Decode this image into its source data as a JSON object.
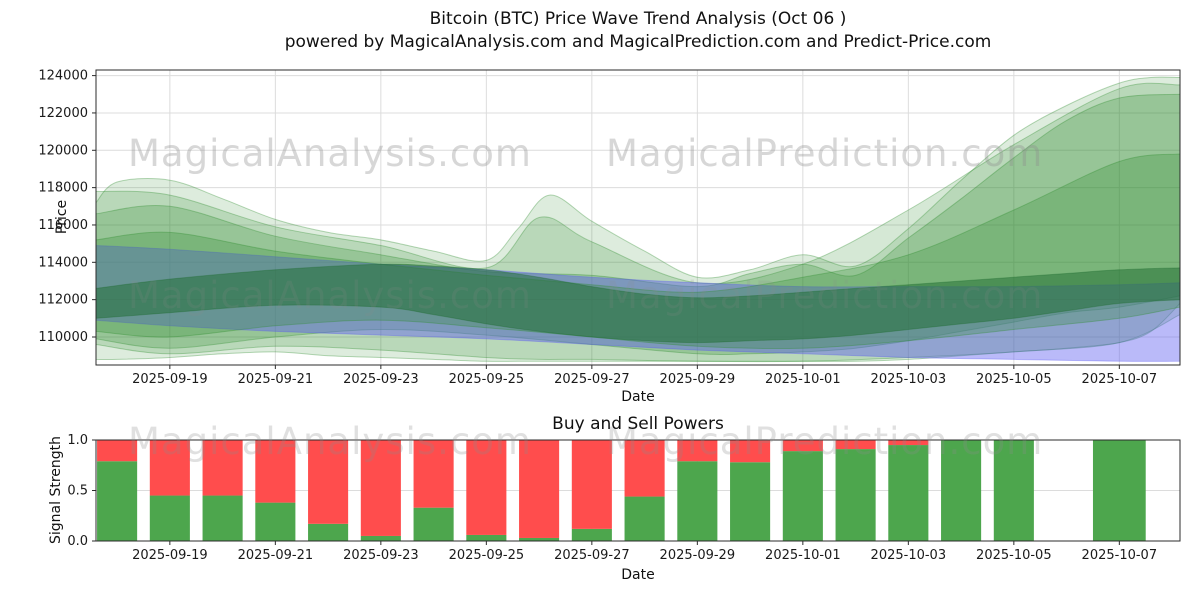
{
  "header": {
    "line1": "Bitcoin (BTC) Price Wave Trend Analysis (Oct 06 )",
    "line2": "powered by MagicalAnalysis.com and MagicalPrediction.com and Predict-Price.com"
  },
  "watermarks": {
    "analysis": "MagicalAnalysis.com",
    "prediction": "MagicalPrediction.com"
  },
  "colors": {
    "band_green": "#2e8b2e",
    "band_green_dark": "#1d6b2f",
    "band_blue": "#5a5af0",
    "buy_green": "#4da64d",
    "sell_red": "#ff4d4d",
    "grid": "#dcdcdc",
    "spine": "#2b2b2b"
  },
  "chart_data": [
    {
      "type": "area",
      "name": "price-wave-trend",
      "ylabel": "Price",
      "xlabel": "Date",
      "ylim": [
        108500,
        124300
      ],
      "yticks": [
        110000,
        112000,
        114000,
        116000,
        118000,
        120000,
        122000,
        124000
      ],
      "x_domain_days": [
        0.6,
        21.15
      ],
      "day0_date": "2025-09-17",
      "grid": true,
      "xticks": [
        {
          "day": 2,
          "label": "2025-09-19"
        },
        {
          "day": 4,
          "label": "2025-09-21"
        },
        {
          "day": 6,
          "label": "2025-09-23"
        },
        {
          "day": 8,
          "label": "2025-09-25"
        },
        {
          "day": 10,
          "label": "2025-09-27"
        },
        {
          "day": 12,
          "label": "2025-09-29"
        },
        {
          "day": 14,
          "label": "2025-10-01"
        },
        {
          "day": 16,
          "label": "2025-10-03"
        },
        {
          "day": 18,
          "label": "2025-10-05"
        },
        {
          "day": 20,
          "label": "2025-10-07"
        }
      ],
      "bands": [
        {
          "name": "green-outer-light",
          "color": "#2e8b2e",
          "opacity": 0.16,
          "x": [
            0.6,
            1,
            2,
            3,
            4,
            5,
            6,
            7,
            8,
            8.6,
            9.2,
            10,
            11,
            12,
            13,
            14,
            15,
            16,
            17,
            18,
            19,
            20,
            20.6,
            21.15
          ],
          "upper": [
            117200,
            118300,
            118400,
            117400,
            116300,
            115600,
            115200,
            114600,
            114100,
            115800,
            117600,
            116200,
            114600,
            113200,
            113600,
            114400,
            113800,
            115800,
            118400,
            120800,
            122400,
            123600,
            123900,
            123900
          ],
          "lower": [
            108800,
            108800,
            108900,
            109100,
            109200,
            109000,
            108900,
            108800,
            108700,
            108700,
            108700,
            108700,
            108700,
            108700,
            108700,
            108700,
            108700,
            108800,
            109000,
            109200,
            109400,
            109700,
            110300,
            111800
          ]
        },
        {
          "name": "green-light",
          "color": "#2e8b2e",
          "opacity": 0.2,
          "x": [
            0.6,
            2,
            4,
            6,
            8,
            9,
            10,
            12,
            14,
            16,
            18,
            20,
            21.15
          ],
          "upper": [
            117800,
            117600,
            115900,
            114900,
            113700,
            116400,
            115100,
            112900,
            113900,
            116800,
            120300,
            123300,
            123500
          ],
          "lower": [
            109600,
            109100,
            109500,
            109300,
            108900,
            108800,
            108800,
            108700,
            108700,
            108900,
            109200,
            109700,
            111200
          ]
        },
        {
          "name": "green-mid",
          "color": "#2e8b2e",
          "opacity": 0.24,
          "x": [
            0.6,
            2,
            4,
            6,
            8,
            10,
            12,
            13,
            14,
            15,
            16,
            17,
            18,
            19,
            20,
            21.15
          ],
          "upper": [
            116600,
            117000,
            115400,
            114400,
            113500,
            113300,
            112700,
            113400,
            113900,
            113300,
            115300,
            117400,
            119600,
            121600,
            122800,
            123000
          ],
          "lower": [
            109900,
            109400,
            110000,
            110400,
            110100,
            109600,
            109100,
            109100,
            109200,
            109400,
            109800,
            110300,
            110800,
            111300,
            111600,
            112200
          ]
        },
        {
          "name": "blue-band",
          "color": "#5a5af0",
          "opacity": 0.42,
          "x": [
            0.6,
            2,
            4,
            6,
            8,
            10,
            12,
            14,
            16,
            18,
            20,
            21.15
          ],
          "upper": [
            114900,
            114700,
            114300,
            113900,
            113600,
            113200,
            112900,
            112700,
            112700,
            112700,
            112800,
            112900
          ],
          "lower": [
            110900,
            110600,
            110300,
            110100,
            109900,
            109600,
            109300,
            109100,
            108900,
            108800,
            108700,
            108700
          ]
        },
        {
          "name": "green-inner",
          "color": "#2e8b2e",
          "opacity": 0.28,
          "x": [
            0.6,
            2,
            4,
            6,
            8,
            10,
            12,
            14,
            16,
            18,
            20,
            21.15
          ],
          "upper": [
            115200,
            115600,
            114600,
            113900,
            113300,
            112800,
            112400,
            113200,
            114400,
            116800,
            119400,
            119800
          ],
          "lower": [
            110300,
            110000,
            110600,
            110900,
            110500,
            110000,
            109500,
            109400,
            109800,
            110400,
            111000,
            111600
          ]
        },
        {
          "name": "green-dark-core",
          "color": "#1d6b2f",
          "opacity": 0.5,
          "x": [
            0.6,
            2,
            4,
            6,
            7,
            8,
            9,
            10,
            11,
            12,
            13,
            14,
            15,
            16,
            17,
            18,
            19,
            20,
            21.15
          ],
          "upper": [
            112600,
            113100,
            113600,
            113900,
            113800,
            113600,
            113200,
            112700,
            112300,
            112100,
            112200,
            112400,
            112600,
            112800,
            113000,
            113200,
            113400,
            113600,
            113700
          ],
          "lower": [
            111000,
            111300,
            111700,
            111600,
            111200,
            110700,
            110300,
            110000,
            109800,
            109700,
            109800,
            109900,
            110100,
            110400,
            110700,
            111000,
            111400,
            111800,
            112000
          ]
        }
      ]
    },
    {
      "type": "bar",
      "stacked": true,
      "name": "buy-sell-powers",
      "title": "Buy and Sell Powers",
      "ylabel": "Signal Strength",
      "xlabel": "Date",
      "ylim": [
        0,
        1
      ],
      "yticks": [
        "0.0",
        "0.5",
        "1.0"
      ],
      "legend": "none",
      "series_colors": {
        "buy": "#4da64d",
        "sell": "#ff4d4d"
      },
      "bars": [
        {
          "date": "2025-09-18",
          "buy": 0.79,
          "sell": 0.21
        },
        {
          "date": "2025-09-19",
          "buy": 0.45,
          "sell": 0.55
        },
        {
          "date": "2025-09-20",
          "buy": 0.45,
          "sell": 0.55
        },
        {
          "date": "2025-09-21",
          "buy": 0.38,
          "sell": 0.62
        },
        {
          "date": "2025-09-22",
          "buy": 0.17,
          "sell": 0.83
        },
        {
          "date": "2025-09-23",
          "buy": 0.05,
          "sell": 0.95
        },
        {
          "date": "2025-09-24",
          "buy": 0.33,
          "sell": 0.67
        },
        {
          "date": "2025-09-25",
          "buy": 0.06,
          "sell": 0.94
        },
        {
          "date": "2025-09-26",
          "buy": 0.03,
          "sell": 0.97
        },
        {
          "date": "2025-09-27",
          "buy": 0.12,
          "sell": 0.88
        },
        {
          "date": "2025-09-28",
          "buy": 0.44,
          "sell": 0.56
        },
        {
          "date": "2025-09-29",
          "buy": 0.79,
          "sell": 0.21
        },
        {
          "date": "2025-09-30",
          "buy": 0.78,
          "sell": 0.22
        },
        {
          "date": "2025-10-01",
          "buy": 0.89,
          "sell": 0.11
        },
        {
          "date": "2025-10-02",
          "buy": 0.91,
          "sell": 0.09
        },
        {
          "date": "2025-10-03",
          "buy": 0.95,
          "sell": 0.05
        },
        {
          "date": "2025-10-04",
          "buy": 1.0,
          "sell": 0.0
        },
        {
          "date": "2025-10-05",
          "buy": 1.0,
          "sell": 0.0
        },
        {
          "date": "2025-10-06",
          "buy": 0.0,
          "sell": 0.0
        },
        {
          "date": "2025-10-07",
          "buy": 1.0,
          "sell": 0.0
        }
      ]
    }
  ]
}
